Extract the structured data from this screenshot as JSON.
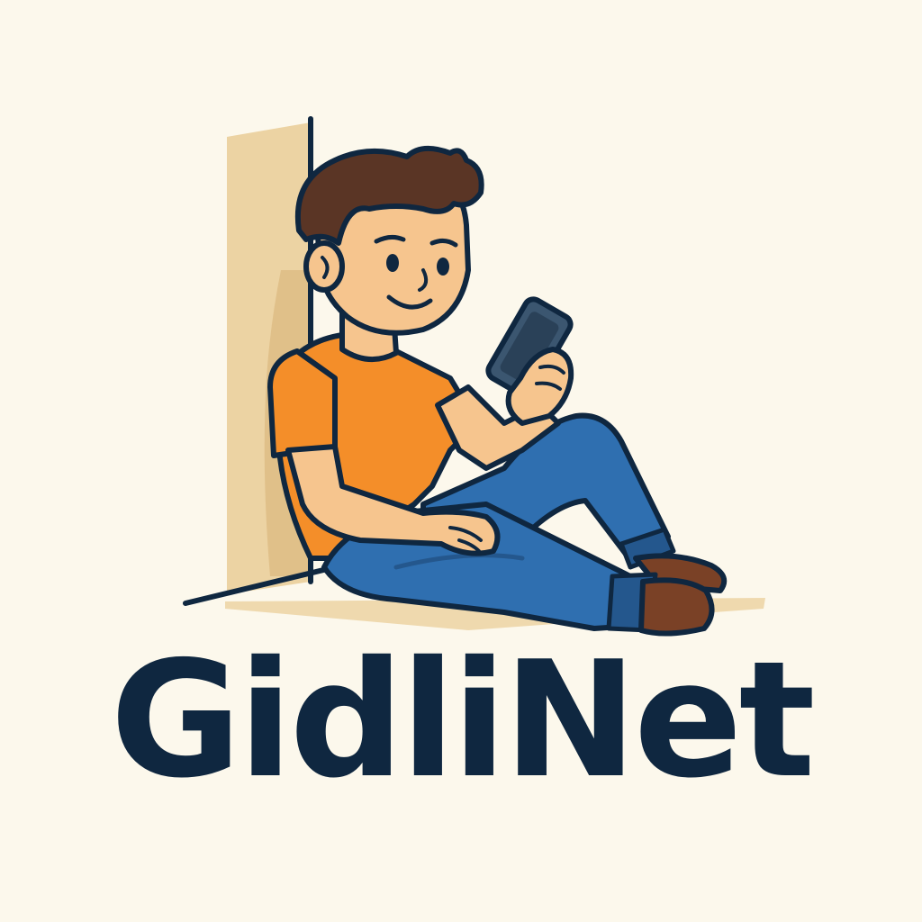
{
  "logo": {
    "brand_name": "GidliNet",
    "illustration": "person-sitting-with-phone",
    "icon": "smartphone-icon"
  },
  "colors": {
    "background": "#fcf8ec",
    "text": "#0f2740",
    "outline": "#0f2740",
    "wall": "#ecd3a3",
    "wall_shadow": "#dcb87e",
    "skin": "#f6c58e",
    "hair": "#5a3525",
    "shirt": "#f48e29",
    "jeans": "#2f6fb0",
    "jeans_dark": "#24578d",
    "shoe": "#7a4126",
    "phone": "#3b5670"
  }
}
